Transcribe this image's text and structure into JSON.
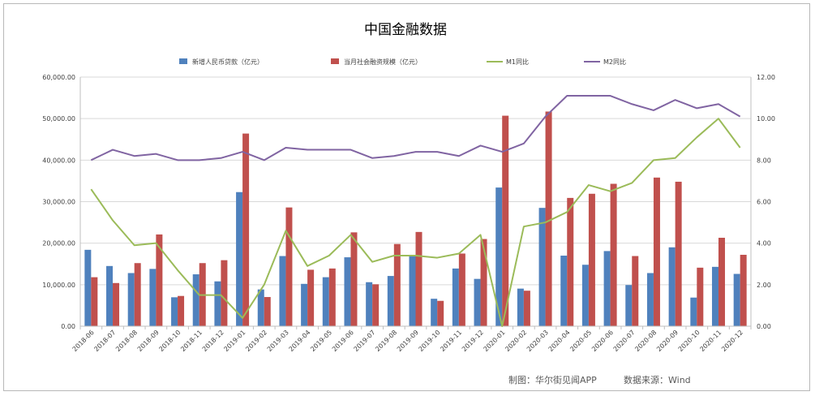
{
  "chart_data": {
    "type": "bar",
    "title": "中国金融数据",
    "categories": [
      "2018-06",
      "2018-07",
      "2018-08",
      "2018-09",
      "2018-10",
      "2018-11",
      "2018-12",
      "2019-01",
      "2019-02",
      "2019-03",
      "2019-04",
      "2019-05",
      "2019-06",
      "2019-07",
      "2019-08",
      "2019-09",
      "2019-10",
      "2019-11",
      "2019-12",
      "2020-01",
      "2020-02",
      "2020-03",
      "2020-04",
      "2020-05",
      "2020-06",
      "2020-07",
      "2020-08",
      "2020-09",
      "2020-10",
      "2020-11",
      "2020-12"
    ],
    "series": [
      {
        "name": "新增人民币贷款（亿元）",
        "type": "bar",
        "axis": "left",
        "color": "#4f81bd",
        "values": [
          18400,
          14500,
          12800,
          13800,
          6970,
          12500,
          10800,
          32300,
          8858,
          16900,
          10200,
          11800,
          16600,
          10600,
          12100,
          16900,
          6613,
          13900,
          11400,
          33400,
          9057,
          28500,
          17000,
          14800,
          18100,
          9927,
          12800,
          19000,
          6898,
          14300,
          12600
        ]
      },
      {
        "name": "当月社会融资规模（亿元）",
        "type": "bar",
        "axis": "left",
        "color": "#c0504d",
        "values": [
          11800,
          10400,
          15200,
          22100,
          7288,
          15200,
          15900,
          46400,
          7030,
          28600,
          13600,
          13900,
          22600,
          10100,
          19800,
          22700,
          6108,
          17500,
          21000,
          50700,
          8554,
          51700,
          30900,
          31900,
          34300,
          16900,
          35800,
          34800,
          14100,
          21300,
          17200
        ]
      },
      {
        "name": "M1同比",
        "type": "line",
        "axis": "right",
        "color": "#9bbb59",
        "values": [
          6.6,
          5.1,
          3.9,
          4.0,
          2.7,
          1.5,
          1.5,
          0.4,
          2.0,
          4.6,
          2.9,
          3.4,
          4.4,
          3.1,
          3.4,
          3.4,
          3.3,
          3.5,
          4.4,
          0.0,
          4.8,
          5.0,
          5.5,
          6.8,
          6.5,
          6.9,
          8.0,
          8.1,
          9.1,
          10.0,
          8.6
        ]
      },
      {
        "name": "M2同比",
        "type": "line",
        "axis": "right",
        "color": "#8064a2",
        "values": [
          8.0,
          8.5,
          8.2,
          8.3,
          8.0,
          8.0,
          8.1,
          8.4,
          8.0,
          8.6,
          8.5,
          8.5,
          8.5,
          8.1,
          8.2,
          8.4,
          8.4,
          8.2,
          8.7,
          8.4,
          8.8,
          10.1,
          11.1,
          11.1,
          11.1,
          10.7,
          10.4,
          10.9,
          10.5,
          10.7,
          10.1
        ]
      }
    ],
    "y_left": {
      "min": 0,
      "max": 60000,
      "ticks": [
        "0.00",
        "10,000.00",
        "20,000.00",
        "30,000.00",
        "40,000.00",
        "50,000.00",
        "60,000.00"
      ]
    },
    "y_right": {
      "min": 0,
      "max": 12,
      "ticks": [
        "0.00",
        "2.00",
        "4.00",
        "6.00",
        "8.00",
        "10.00",
        "12.00"
      ]
    },
    "grid": true,
    "legend_position": "top"
  },
  "footer": {
    "made_by": "制图：华尔街见闻APP",
    "source": "数据来源：Wind"
  }
}
